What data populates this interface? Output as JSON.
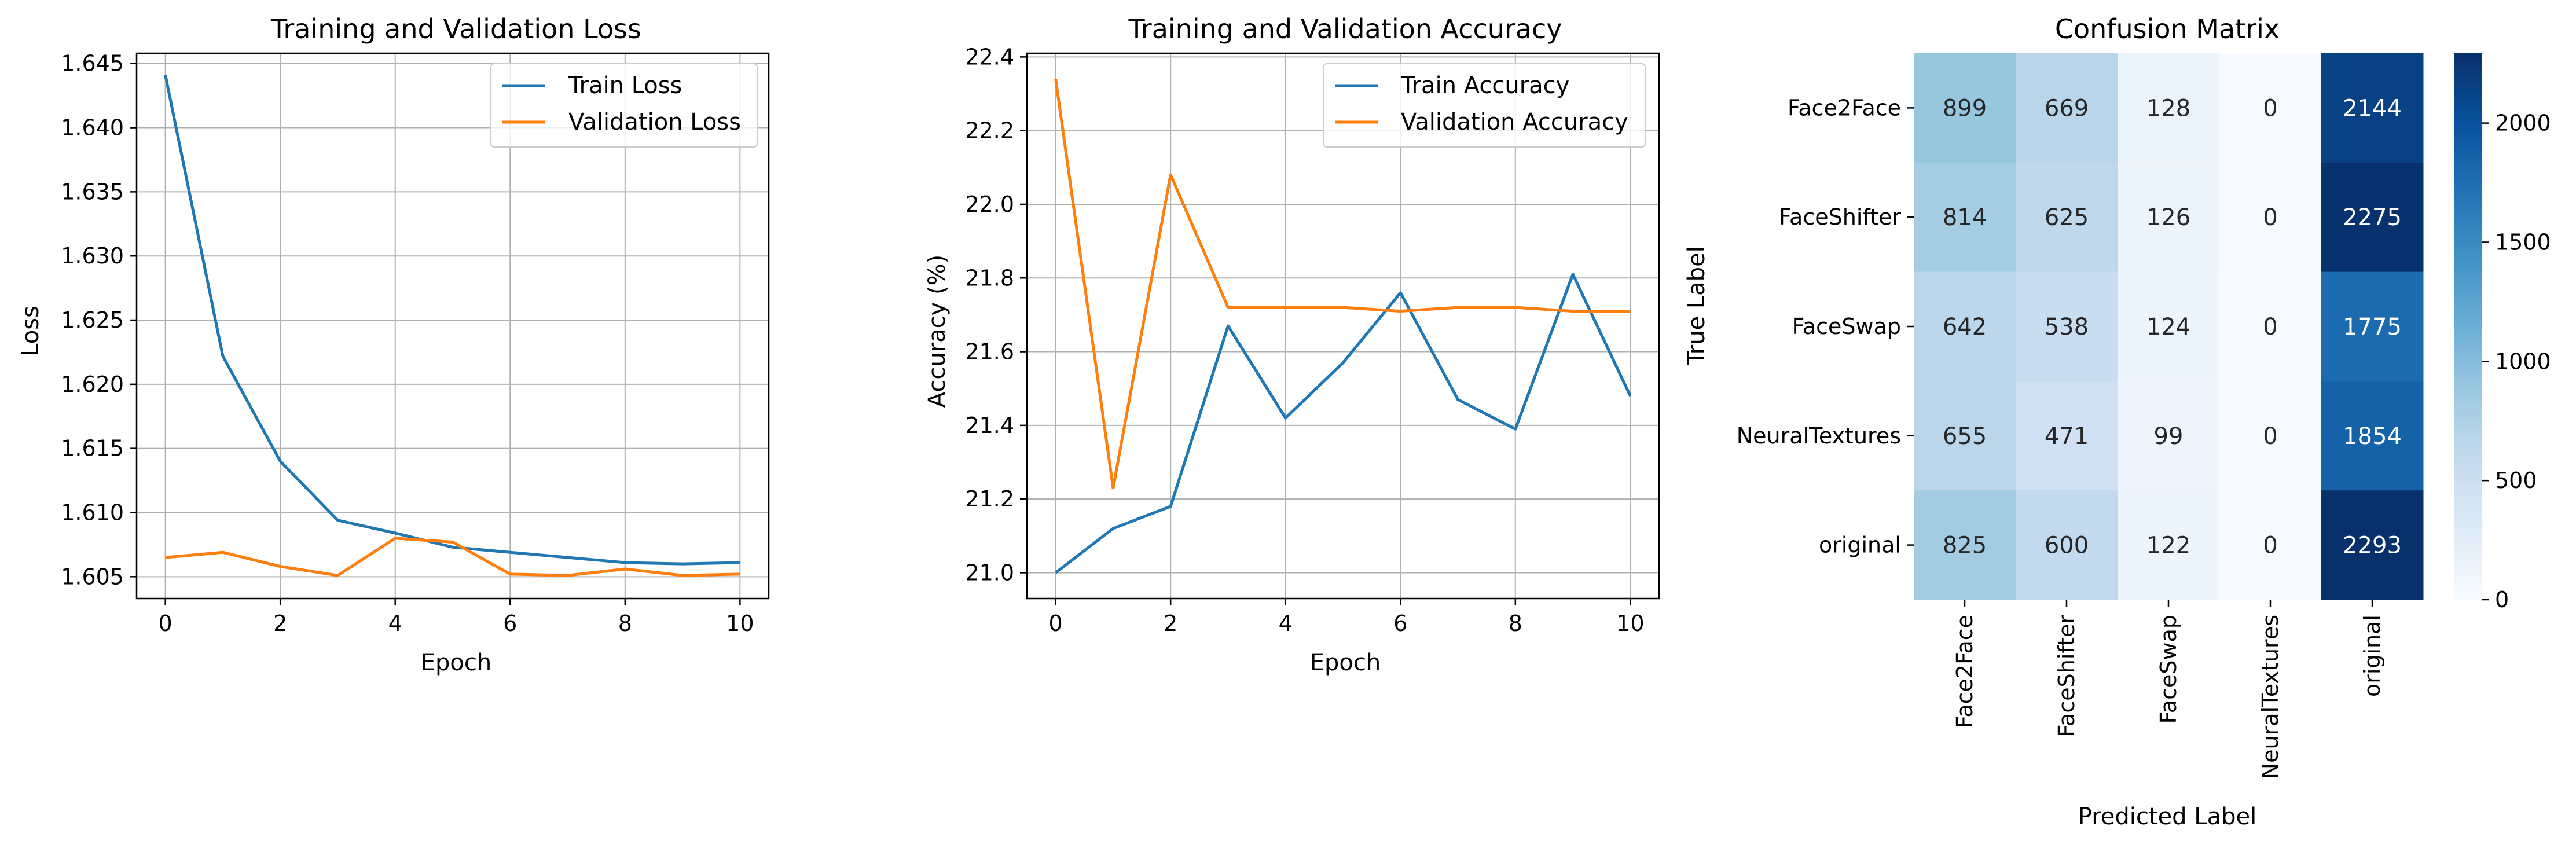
{
  "colors": {
    "train": "#1f77b4",
    "validation": "#ff7f0e",
    "grid": "#b0b0b0",
    "heatmap_colormap": "Blues"
  },
  "chart_data": [
    {
      "type": "line",
      "title": "Training and Validation Loss",
      "xlabel": "Epoch",
      "ylabel": "Loss",
      "x": [
        0,
        1,
        2,
        3,
        4,
        5,
        6,
        7,
        8,
        9,
        10
      ],
      "xticks": [
        0,
        2,
        4,
        6,
        8,
        10
      ],
      "yticks": [
        1.605,
        1.61,
        1.615,
        1.62,
        1.625,
        1.63,
        1.635,
        1.64,
        1.645
      ],
      "ytick_labels": [
        "1.605",
        "1.610",
        "1.615",
        "1.620",
        "1.625",
        "1.630",
        "1.635",
        "1.640",
        "1.645"
      ],
      "xlim": [
        -0.5,
        10.5
      ],
      "ylim": [
        1.6033,
        1.6458
      ],
      "grid": true,
      "legend_position": "top-right",
      "series": [
        {
          "name": "Train Loss",
          "values": [
            1.6441,
            1.6222,
            1.614,
            1.6094,
            1.6084,
            1.6073,
            1.6069,
            1.6065,
            1.6061,
            1.606,
            1.6061
          ]
        },
        {
          "name": "Validation Loss",
          "values": [
            1.6065,
            1.6069,
            1.6058,
            1.6051,
            1.608,
            1.6077,
            1.6052,
            1.6051,
            1.6056,
            1.6051,
            1.6052
          ]
        }
      ]
    },
    {
      "type": "line",
      "title": "Training and Validation Accuracy",
      "xlabel": "Epoch",
      "ylabel": "Accuracy (%)",
      "x": [
        0,
        1,
        2,
        3,
        4,
        5,
        6,
        7,
        8,
        9,
        10
      ],
      "xticks": [
        0,
        2,
        4,
        6,
        8,
        10
      ],
      "yticks": [
        21.0,
        21.2,
        21.4,
        21.6,
        21.8,
        22.0,
        22.2,
        22.4
      ],
      "ytick_labels": [
        "21.0",
        "21.2",
        "21.4",
        "21.6",
        "21.8",
        "22.0",
        "22.2",
        "22.4"
      ],
      "xlim": [
        -0.5,
        10.5
      ],
      "ylim": [
        20.93,
        22.41
      ],
      "grid": true,
      "legend_position": "top-right",
      "series": [
        {
          "name": "Train Accuracy",
          "values": [
            21.0,
            21.12,
            21.18,
            21.67,
            21.42,
            21.57,
            21.76,
            21.47,
            21.39,
            21.81,
            21.48
          ]
        },
        {
          "name": "Validation Accuracy",
          "values": [
            22.34,
            21.23,
            22.08,
            21.72,
            21.72,
            21.72,
            21.71,
            21.72,
            21.72,
            21.71,
            21.71
          ]
        }
      ]
    },
    {
      "type": "heatmap",
      "title": "Confusion Matrix",
      "xlabel": "Predicted Label",
      "ylabel": "True Label",
      "x_categories": [
        "Face2Face",
        "FaceShifter",
        "FaceSwap",
        "NeuralTextures",
        "original"
      ],
      "y_categories": [
        "Face2Face",
        "FaceShifter",
        "FaceSwap",
        "NeuralTextures",
        "original"
      ],
      "values": [
        [
          899,
          669,
          128,
          0,
          2144
        ],
        [
          814,
          625,
          126,
          0,
          2275
        ],
        [
          642,
          538,
          124,
          0,
          1775
        ],
        [
          655,
          471,
          99,
          0,
          1854
        ],
        [
          825,
          600,
          122,
          0,
          2293
        ]
      ],
      "colorbar_range": [
        0,
        2293
      ],
      "colorbar_ticks": [
        0,
        500,
        1000,
        1500,
        2000
      ]
    }
  ]
}
